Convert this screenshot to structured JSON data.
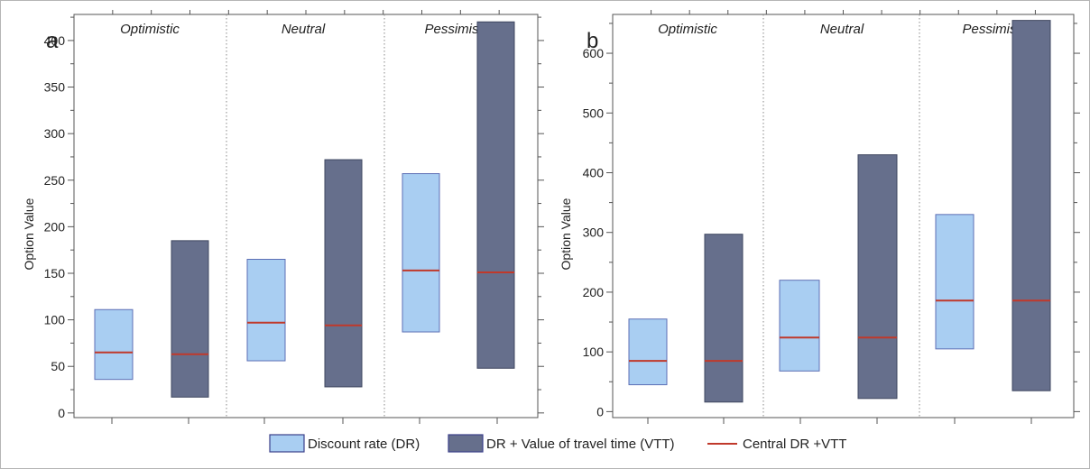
{
  "colors": {
    "dr_fill": "#a9cef2",
    "dr_stroke": "#5d6fb5",
    "vtt_fill": "#666f8c",
    "vtt_stroke": "#3f4760",
    "central_line": "#c0392b",
    "frame": "#555555",
    "divider": "#888888"
  },
  "legend": {
    "items": [
      {
        "label": "Discount rate (DR)",
        "kind": "box",
        "color_key": "dr"
      },
      {
        "label": "DR + Value of travel time (VTT)",
        "kind": "box",
        "color_key": "vtt"
      },
      {
        "label": "Central DR +VTT",
        "kind": "line",
        "color_key": "central_line"
      }
    ]
  },
  "chart_data": [
    {
      "type": "floating-bar",
      "panel_label": "a",
      "title": "",
      "xlabel": "",
      "ylabel": "Option Value",
      "ylim": [
        -5,
        428
      ],
      "yticks": [
        0,
        50,
        100,
        150,
        200,
        250,
        300,
        350,
        400
      ],
      "y_minor_step": 25,
      "grid": false,
      "groups": [
        "Optimistic",
        "Neutral",
        "Pessimistic"
      ],
      "series": [
        {
          "name": "Discount rate (DR)",
          "low": [
            36,
            56,
            87
          ],
          "high": [
            111,
            165,
            257
          ],
          "central": [
            65,
            97,
            153
          ]
        },
        {
          "name": "DR + Value of travel time (VTT)",
          "low": [
            17,
            28,
            48
          ],
          "high": [
            185,
            272,
            420
          ],
          "central": [
            63,
            94,
            151
          ]
        }
      ]
    },
    {
      "type": "floating-bar",
      "panel_label": "b",
      "title": "",
      "xlabel": "",
      "ylabel": "Option Value",
      "ylim": [
        -10,
        665
      ],
      "yticks": [
        0,
        100,
        200,
        300,
        400,
        500,
        600
      ],
      "y_minor_step": 50,
      "grid": false,
      "groups": [
        "Optimistic",
        "Neutral",
        "Pessimistic"
      ],
      "series": [
        {
          "name": "Discount rate (DR)",
          "low": [
            45,
            68,
            105
          ],
          "high": [
            155,
            220,
            330
          ],
          "central": [
            85,
            124,
            186
          ]
        },
        {
          "name": "DR + Value of travel time (VTT)",
          "low": [
            16,
            22,
            35
          ],
          "high": [
            297,
            430,
            655
          ],
          "central": [
            85,
            124,
            186
          ]
        }
      ]
    }
  ]
}
